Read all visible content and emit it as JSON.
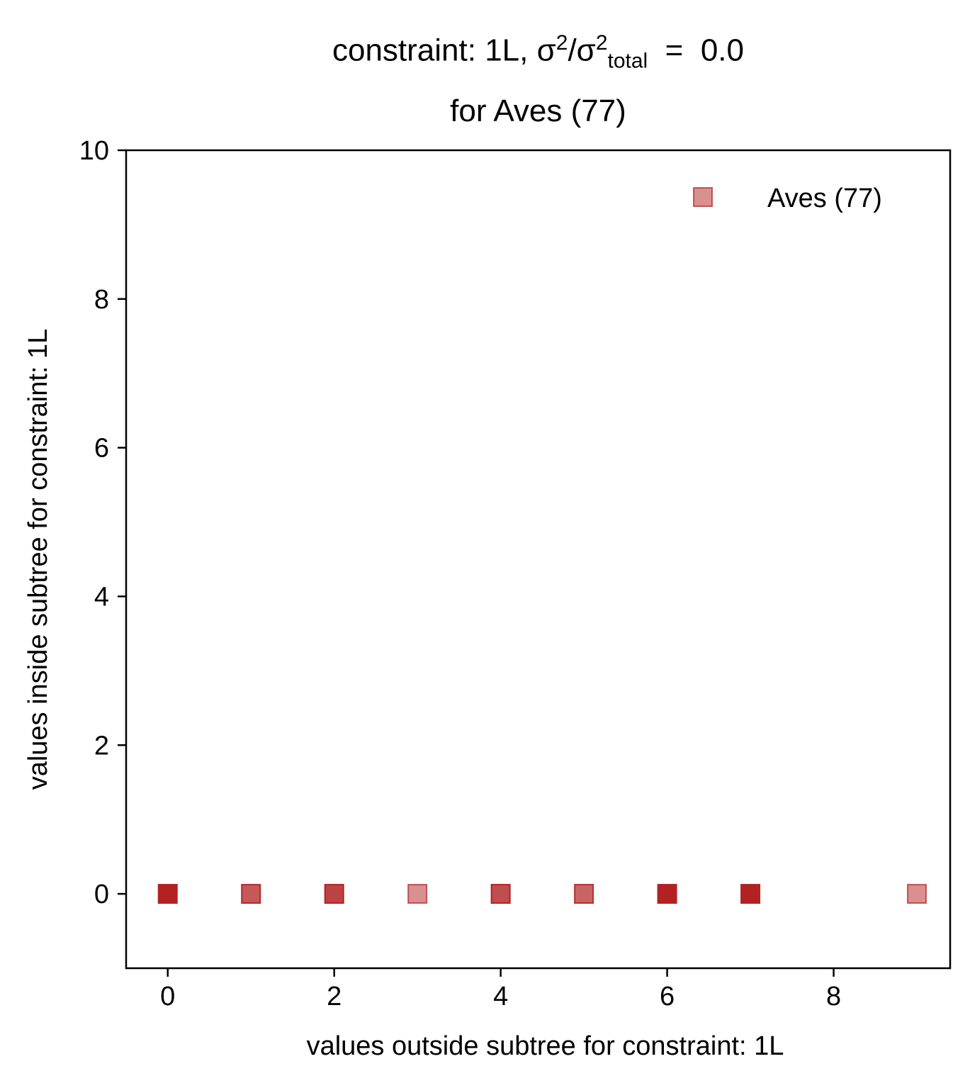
{
  "title": {
    "prefix": "constraint: 1L, σ",
    "sup1": "2",
    "mid": "/σ",
    "sup2": "2",
    "sub": "total",
    "suffix": "  =  0.0",
    "line2": "for Aves (77)"
  },
  "chart_data": {
    "type": "scatter",
    "xlabel": "values outside subtree for constraint: 1L",
    "ylabel": "values inside subtree for constraint: 1L",
    "xlim": [
      -0.5,
      9.4
    ],
    "ylim": [
      -1,
      10
    ],
    "xticks": [
      0,
      2,
      4,
      6,
      8
    ],
    "yticks": [
      0,
      2,
      4,
      6,
      8,
      10
    ],
    "grid": false,
    "legend_position": "top-right",
    "series": [
      {
        "name": "Aves (77)",
        "marker": "square",
        "color": "#b22222",
        "points": [
          {
            "x": 0,
            "y": 0,
            "opacity": 1.0
          },
          {
            "x": 1,
            "y": 0,
            "opacity": 0.75
          },
          {
            "x": 2,
            "y": 0,
            "opacity": 0.85
          },
          {
            "x": 3,
            "y": 0,
            "opacity": 0.5
          },
          {
            "x": 4,
            "y": 0,
            "opacity": 0.8
          },
          {
            "x": 5,
            "y": 0,
            "opacity": 0.7
          },
          {
            "x": 6,
            "y": 0,
            "opacity": 1.0
          },
          {
            "x": 7,
            "y": 0,
            "opacity": 1.0
          },
          {
            "x": 9,
            "y": 0,
            "opacity": 0.5
          }
        ]
      }
    ]
  }
}
